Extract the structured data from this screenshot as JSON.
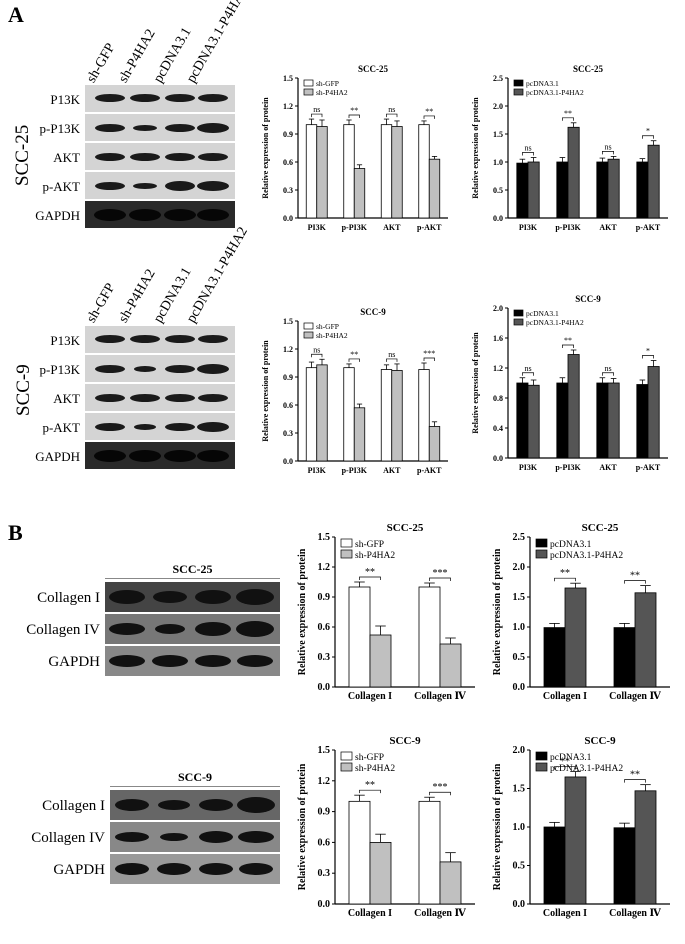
{
  "panels": {
    "a": "A",
    "b": "B"
  },
  "panelA": {
    "lanes": [
      "sh-GFP",
      "sh-P4HA2",
      "pcDNA3.1",
      "pcDNA3.1-P4HA2"
    ],
    "proteins": [
      "P13K",
      "p-P13K",
      "AKT",
      "p-AKT",
      "GAPDH"
    ],
    "cell_lines": [
      "SCC-25",
      "SCC-9"
    ]
  },
  "panelB": {
    "blot_titles": [
      "SCC-25",
      "SCC-9"
    ],
    "proteins": [
      "Collagen I",
      "Collagen IV",
      "GAPDH"
    ]
  },
  "chart_data": [
    {
      "id": "a1",
      "type": "bar",
      "title": "SCC-25",
      "ylabel": "Relative expression of protein",
      "categories": [
        "PI3K",
        "p-PI3K",
        "AKT",
        "p-AKT"
      ],
      "ylim": [
        0,
        1.5
      ],
      "yticks": [
        "0.0",
        "0.3",
        "0.6",
        "0.9",
        "1.2",
        "1.5"
      ],
      "series": [
        {
          "name": "sh-GFP",
          "values": [
            1.0,
            1.0,
            1.0,
            1.0
          ],
          "errors": [
            0.06,
            0.05,
            0.06,
            0.04
          ],
          "color": "#ffffff"
        },
        {
          "name": "sh-P4HA2",
          "values": [
            0.98,
            0.53,
            0.98,
            0.63
          ],
          "errors": [
            0.07,
            0.04,
            0.06,
            0.03
          ],
          "color": "#c0c0c0"
        }
      ],
      "sig": [
        "ns",
        "**",
        "ns",
        "**"
      ]
    },
    {
      "id": "a2",
      "type": "bar",
      "title": "SCC-25",
      "ylabel": "Relative expression of protein",
      "categories": [
        "PI3K",
        "p-PI3K",
        "AKT",
        "p-AKT"
      ],
      "ylim": [
        0,
        2.5
      ],
      "yticks": [
        "0.0",
        "0.5",
        "1.0",
        "1.5",
        "2.0",
        "2.5"
      ],
      "series": [
        {
          "name": "pcDNA3.1",
          "values": [
            0.98,
            1.0,
            1.0,
            1.0
          ],
          "errors": [
            0.07,
            0.08,
            0.07,
            0.06
          ],
          "color": "#000000"
        },
        {
          "name": "pcDNA3.1-P4HA2",
          "values": [
            1.0,
            1.62,
            1.05,
            1.3
          ],
          "errors": [
            0.08,
            0.08,
            0.05,
            0.08
          ],
          "color": "#555555"
        }
      ],
      "sig": [
        "ns",
        "**",
        "ns",
        "*"
      ]
    },
    {
      "id": "a3",
      "type": "bar",
      "title": "SCC-9",
      "ylabel": "Relative expression of protein",
      "categories": [
        "PI3K",
        "p-PI3K",
        "AKT",
        "p-AKT"
      ],
      "ylim": [
        0,
        1.5
      ],
      "yticks": [
        "0.0",
        "0.3",
        "0.6",
        "0.9",
        "1.2",
        "1.5"
      ],
      "series": [
        {
          "name": "sh-GFP",
          "values": [
            1.0,
            1.0,
            0.98,
            0.98
          ],
          "errors": [
            0.06,
            0.04,
            0.05,
            0.07
          ],
          "color": "#ffffff"
        },
        {
          "name": "sh-P4HA2",
          "values": [
            1.03,
            0.57,
            0.97,
            0.37
          ],
          "errors": [
            0.06,
            0.04,
            0.07,
            0.05
          ],
          "color": "#c0c0c0"
        }
      ],
      "sig": [
        "ns",
        "**",
        "ns",
        "***"
      ]
    },
    {
      "id": "a4",
      "type": "bar",
      "title": "SCC-9",
      "ylabel": "Relative expression of protein",
      "categories": [
        "PI3K",
        "p-PI3K",
        "AKT",
        "p-AKT"
      ],
      "ylim": [
        0,
        2.0
      ],
      "yticks": [
        "0.0",
        "0.4",
        "0.8",
        "1.2",
        "1.6",
        "2.0"
      ],
      "series": [
        {
          "name": "pcDNA3.1",
          "values": [
            1.0,
            1.0,
            1.0,
            0.98
          ],
          "errors": [
            0.07,
            0.07,
            0.07,
            0.06
          ],
          "color": "#000000"
        },
        {
          "name": "pcDNA3.1-P4HA2",
          "values": [
            0.97,
            1.38,
            1.0,
            1.22
          ],
          "errors": [
            0.07,
            0.06,
            0.06,
            0.08
          ],
          "color": "#555555"
        }
      ],
      "sig": [
        "ns",
        "**",
        "ns",
        "*"
      ]
    },
    {
      "id": "b1",
      "type": "bar",
      "title": "SCC-25",
      "ylabel": "Relative expression of  protein",
      "categories": [
        "Collagen I",
        "Collagen Ⅳ"
      ],
      "ylim": [
        0,
        1.5
      ],
      "yticks": [
        "0.0",
        "0.3",
        "0.6",
        "0.9",
        "1.2",
        "1.5"
      ],
      "series": [
        {
          "name": "sh-GFP",
          "values": [
            1.0,
            1.0
          ],
          "errors": [
            0.05,
            0.04
          ],
          "color": "#ffffff"
        },
        {
          "name": "sh-P4HA2",
          "values": [
            0.52,
            0.43
          ],
          "errors": [
            0.09,
            0.06
          ],
          "color": "#c0c0c0"
        }
      ],
      "sig": [
        "**",
        "***"
      ]
    },
    {
      "id": "b2",
      "type": "bar",
      "title": "SCC-25",
      "ylabel": "Relative expression of  protein",
      "categories": [
        "Collagen I",
        "Collagen Ⅳ"
      ],
      "ylim": [
        0,
        2.5
      ],
      "yticks": [
        "0.0",
        "0.5",
        "1.0",
        "1.5",
        "2.0",
        "2.5"
      ],
      "series": [
        {
          "name": "pcDNA3.1",
          "values": [
            0.99,
            0.99
          ],
          "errors": [
            0.07,
            0.07
          ],
          "color": "#000000"
        },
        {
          "name": "pcDNA3.1-P4HA2",
          "values": [
            1.65,
            1.57
          ],
          "errors": [
            0.08,
            0.12
          ],
          "color": "#555555"
        }
      ],
      "sig": [
        "**",
        "**"
      ]
    },
    {
      "id": "b3",
      "type": "bar",
      "title": "SCC-9",
      "ylabel": "Relative expression of  protein",
      "categories": [
        "Collagen I",
        "Collagen Ⅳ"
      ],
      "ylim": [
        0,
        1.5
      ],
      "yticks": [
        "0.0",
        "0.3",
        "0.6",
        "0.9",
        "1.2",
        "1.5"
      ],
      "series": [
        {
          "name": "sh-GFP",
          "values": [
            1.0,
            1.0
          ],
          "errors": [
            0.06,
            0.04
          ],
          "color": "#ffffff"
        },
        {
          "name": "sh-P4HA2",
          "values": [
            0.6,
            0.41
          ],
          "errors": [
            0.08,
            0.09
          ],
          "color": "#c0c0c0"
        }
      ],
      "sig": [
        "**",
        "***"
      ]
    },
    {
      "id": "b4",
      "type": "bar",
      "title": "SCC-9",
      "ylabel": "Relative expression of  protein",
      "categories": [
        "Collagen I",
        "Collagen Ⅳ"
      ],
      "ylim": [
        0,
        2.0
      ],
      "yticks": [
        "0.0",
        "0.5",
        "1.0",
        "1.5",
        "2.0"
      ],
      "series": [
        {
          "name": "pcDNA3.1",
          "values": [
            1.0,
            0.99
          ],
          "errors": [
            0.06,
            0.06
          ],
          "color": "#000000"
        },
        {
          "name": "pcDNA3.1-P4HA2",
          "values": [
            1.65,
            1.47
          ],
          "errors": [
            0.07,
            0.08
          ],
          "color": "#555555"
        }
      ],
      "sig": [
        "**",
        "**"
      ]
    }
  ]
}
